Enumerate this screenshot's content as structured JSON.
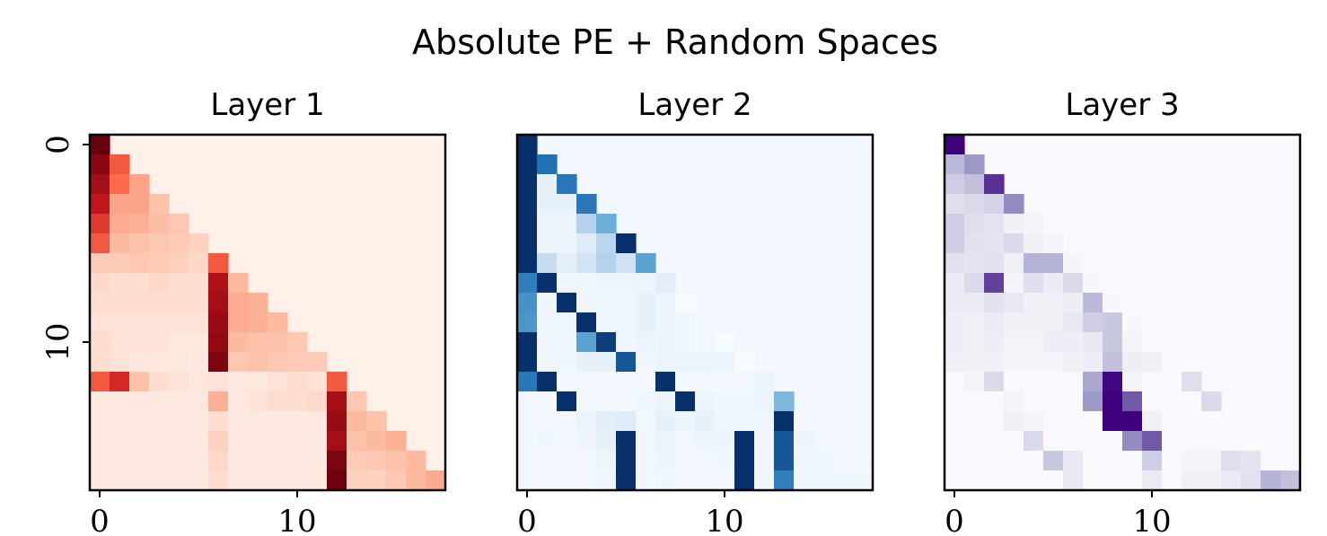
{
  "chart_data": {
    "type": "heatmap",
    "title": "Absolute PE + Random Spaces",
    "x_ticks": [
      "0",
      "10"
    ],
    "y_ticks": [
      "0",
      "10"
    ],
    "n": 18,
    "panels": [
      {
        "title": "Layer 1",
        "colormap": "Reds",
        "rows": [
          [
            1.0
          ],
          [
            0.92,
            0.55
          ],
          [
            0.85,
            0.5,
            0.32
          ],
          [
            0.78,
            0.32,
            0.32,
            0.22
          ],
          [
            0.65,
            0.3,
            0.28,
            0.24,
            0.2
          ],
          [
            0.55,
            0.25,
            0.22,
            0.2,
            0.18,
            0.15
          ],
          [
            0.18,
            0.18,
            0.2,
            0.18,
            0.16,
            0.13,
            0.55
          ],
          [
            0.12,
            0.1,
            0.1,
            0.12,
            0.1,
            0.1,
            0.82,
            0.25
          ],
          [
            0.1,
            0.1,
            0.1,
            0.1,
            0.1,
            0.1,
            0.85,
            0.3,
            0.28
          ],
          [
            0.08,
            0.08,
            0.08,
            0.08,
            0.08,
            0.08,
            0.88,
            0.3,
            0.28,
            0.25
          ],
          [
            0.1,
            0.08,
            0.08,
            0.08,
            0.06,
            0.06,
            0.9,
            0.25,
            0.22,
            0.22,
            0.2
          ],
          [
            0.1,
            0.08,
            0.06,
            0.06,
            0.06,
            0.05,
            0.95,
            0.2,
            0.22,
            0.2,
            0.18,
            0.18
          ],
          [
            0.55,
            0.7,
            0.22,
            0.1,
            0.08,
            0.06,
            0.08,
            0.05,
            0.06,
            0.08,
            0.1,
            0.08,
            0.55
          ],
          [
            0.05,
            0.05,
            0.05,
            0.05,
            0.05,
            0.05,
            0.28,
            0.05,
            0.08,
            0.1,
            0.1,
            0.12,
            0.85,
            0.2
          ],
          [
            0.05,
            0.05,
            0.05,
            0.05,
            0.05,
            0.05,
            0.1,
            0.05,
            0.05,
            0.05,
            0.05,
            0.05,
            0.88,
            0.25,
            0.22
          ],
          [
            0.05,
            0.05,
            0.05,
            0.05,
            0.05,
            0.05,
            0.15,
            0.05,
            0.05,
            0.05,
            0.05,
            0.05,
            0.85,
            0.22,
            0.25,
            0.28
          ],
          [
            0.05,
            0.05,
            0.05,
            0.05,
            0.05,
            0.05,
            0.12,
            0.05,
            0.05,
            0.05,
            0.05,
            0.05,
            0.95,
            0.18,
            0.2,
            0.22,
            0.25
          ],
          [
            0.05,
            0.05,
            0.05,
            0.05,
            0.05,
            0.05,
            0.1,
            0.05,
            0.05,
            0.05,
            0.05,
            0.05,
            0.98,
            0.15,
            0.15,
            0.2,
            0.25,
            0.3
          ]
        ]
      },
      {
        "title": "Layer 2",
        "colormap": "Blues",
        "rows": [
          [
            1.0
          ],
          [
            1.0,
            0.75
          ],
          [
            1.0,
            0.08,
            0.72
          ],
          [
            1.0,
            0.08,
            0.08,
            0.72
          ],
          [
            1.0,
            0.06,
            0.06,
            0.3,
            0.5
          ],
          [
            1.0,
            0.06,
            0.06,
            0.12,
            0.28,
            1.0
          ],
          [
            1.0,
            0.25,
            0.1,
            0.18,
            0.3,
            0.2,
            0.55
          ],
          [
            0.7,
            1.0,
            0.04,
            0.04,
            0.05,
            0.05,
            0.05,
            0.1
          ],
          [
            0.62,
            0.04,
            1.0,
            0.04,
            0.04,
            0.04,
            0.08,
            0.05,
            0.0
          ],
          [
            0.6,
            0.04,
            0.04,
            1.0,
            0.04,
            0.04,
            0.08,
            0.05,
            0.04,
            0.03
          ],
          [
            1.0,
            0.04,
            0.04,
            0.55,
            0.95,
            0.04,
            0.06,
            0.05,
            0.04,
            0.03,
            0.0
          ],
          [
            1.0,
            0.04,
            0.04,
            0.08,
            0.08,
            0.85,
            0.04,
            0.06,
            0.06,
            0.06,
            0.05,
            0.0
          ],
          [
            0.72,
            1.0,
            0.02,
            0.02,
            0.02,
            0.02,
            0.02,
            1.0,
            0.02,
            0.02,
            0.02,
            0.03,
            0.06
          ],
          [
            0.03,
            0.02,
            1.0,
            0.02,
            0.02,
            0.02,
            0.04,
            0.06,
            1.0,
            0.06,
            0.04,
            0.04,
            0.05,
            0.45
          ],
          [
            0.03,
            0.03,
            0.03,
            0.06,
            0.1,
            0.12,
            0.03,
            0.08,
            0.05,
            0.08,
            0.04,
            0.04,
            0.04,
            1.0,
            0.02
          ],
          [
            0.03,
            0.04,
            0.03,
            0.05,
            0.08,
            1.0,
            0.03,
            0.06,
            0.03,
            0.05,
            0.05,
            1.0,
            0.03,
            0.85,
            0.05,
            0.03
          ],
          [
            0.03,
            0.03,
            0.03,
            0.03,
            0.05,
            1.0,
            0.03,
            0.05,
            0.03,
            0.03,
            0.04,
            1.0,
            0.03,
            0.85,
            0.04,
            0.04,
            0.03
          ],
          [
            0.03,
            0.03,
            0.03,
            0.03,
            0.04,
            1.0,
            0.03,
            0.04,
            0.03,
            0.03,
            0.03,
            1.0,
            0.03,
            0.7,
            0.04,
            0.04,
            0.04,
            0.04
          ]
        ]
      },
      {
        "title": "Layer 3",
        "colormap": "Purples",
        "rows": [
          [
            1.0
          ],
          [
            0.38,
            0.5
          ],
          [
            0.3,
            0.35,
            0.85
          ],
          [
            0.22,
            0.25,
            0.28,
            0.55
          ],
          [
            0.3,
            0.22,
            0.18,
            0.08,
            0.05
          ],
          [
            0.3,
            0.2,
            0.18,
            0.25,
            0.08,
            0.05
          ],
          [
            0.2,
            0.18,
            0.2,
            0.08,
            0.4,
            0.4,
            0.05
          ],
          [
            0.12,
            0.25,
            0.8,
            0.05,
            0.22,
            0.12,
            0.25,
            0.03
          ],
          [
            0.12,
            0.12,
            0.2,
            0.15,
            0.08,
            0.08,
            0.1,
            0.38,
            0.03
          ],
          [
            0.1,
            0.08,
            0.12,
            0.08,
            0.08,
            0.08,
            0.15,
            0.3,
            0.32,
            0.03
          ],
          [
            0.1,
            0.08,
            0.1,
            0.06,
            0.06,
            0.1,
            0.1,
            0.15,
            0.32,
            0.05,
            0.02
          ],
          [
            0.08,
            0.08,
            0.08,
            0.06,
            0.06,
            0.06,
            0.08,
            0.1,
            0.35,
            0.1,
            0.08,
            0.02
          ],
          [
            0.02,
            0.05,
            0.25,
            0.02,
            0.02,
            0.02,
            0.02,
            0.45,
            0.98,
            0.05,
            0.02,
            0.02,
            0.22
          ],
          [
            0.02,
            0.02,
            0.02,
            0.05,
            0.02,
            0.02,
            0.02,
            0.5,
            1.0,
            0.72,
            0.02,
            0.02,
            0.02,
            0.25
          ],
          [
            0.02,
            0.02,
            0.02,
            0.08,
            0.05,
            0.02,
            0.02,
            0.02,
            1.0,
            1.0,
            0.08,
            0.02,
            0.02,
            0.02,
            0.02
          ],
          [
            0.02,
            0.02,
            0.02,
            0.02,
            0.25,
            0.02,
            0.02,
            0.02,
            0.02,
            0.55,
            0.72,
            0.02,
            0.02,
            0.02,
            0.02,
            0.02
          ],
          [
            0.02,
            0.02,
            0.02,
            0.02,
            0.02,
            0.32,
            0.15,
            0.02,
            0.02,
            0.02,
            0.3,
            0.02,
            0.05,
            0.06,
            0.22,
            0.18,
            0.02
          ],
          [
            0.02,
            0.02,
            0.02,
            0.02,
            0.02,
            0.02,
            0.15,
            0.02,
            0.02,
            0.02,
            0.12,
            0.02,
            0.08,
            0.08,
            0.12,
            0.2,
            0.4,
            0.35
          ]
        ]
      }
    ]
  }
}
